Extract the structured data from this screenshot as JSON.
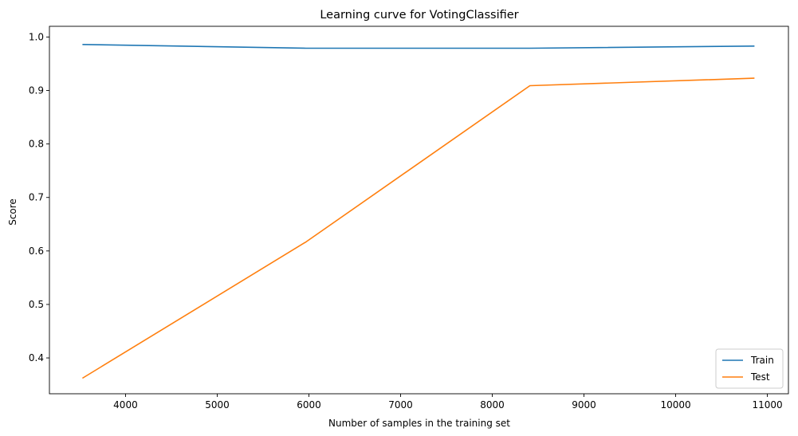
{
  "chart_data": {
    "type": "line",
    "title": "Learning curve for VotingClassifier",
    "xlabel": "Number of samples in the training set",
    "ylabel": "Score",
    "xlim": [
      3170,
      11230
    ],
    "ylim": [
      0.333,
      1.02
    ],
    "xticks": [
      4000,
      5000,
      6000,
      7000,
      8000,
      9000,
      10000,
      11000
    ],
    "yticks": [
      0.4,
      0.5,
      0.6,
      0.7,
      0.8,
      0.9,
      1.0
    ],
    "ytick_labels": [
      "0.4",
      "0.5",
      "0.6",
      "0.7",
      "0.8",
      "0.9",
      "1.0"
    ],
    "grid": false,
    "legend_position": "lower-right",
    "x": [
      3530,
      5970,
      8410,
      10860
    ],
    "series": [
      {
        "name": "Train",
        "color": "#1f77b4",
        "values": [
          0.986,
          0.979,
          0.979,
          0.983
        ]
      },
      {
        "name": "Test",
        "color": "#ff7f0e",
        "values": [
          0.362,
          0.617,
          0.909,
          0.923
        ]
      }
    ]
  }
}
